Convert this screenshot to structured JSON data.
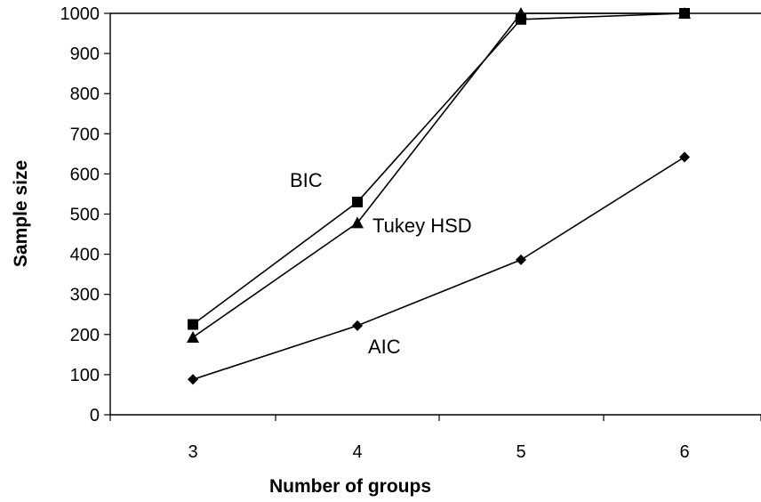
{
  "chart_data": {
    "type": "line",
    "categories": [
      "3",
      "4",
      "5",
      "6"
    ],
    "x": [
      3,
      4,
      5,
      6
    ],
    "xlabel": "Number of groups",
    "ylabel": "Sample size",
    "ylim": [
      0,
      1000
    ],
    "yticks": [
      0,
      100,
      200,
      300,
      400,
      500,
      600,
      700,
      800,
      900,
      1000
    ],
    "grid": false,
    "legend": "none",
    "series": [
      {
        "name": "BIC",
        "marker": "square",
        "values": [
          225,
          530,
          985,
          1000
        ]
      },
      {
        "name": "Tukey HSD",
        "marker": "triangle",
        "values": [
          193,
          478,
          1000,
          1000
        ]
      },
      {
        "name": "AIC",
        "marker": "diamond",
        "values": [
          88,
          222,
          386,
          642
        ]
      }
    ],
    "annotations": [
      {
        "text": "BIC",
        "series": "BIC"
      },
      {
        "text": "Tukey HSD",
        "series": "Tukey HSD"
      },
      {
        "text": "AIC",
        "series": "AIC"
      }
    ],
    "colors": {
      "line": "#000000",
      "marker": "#000000",
      "background": "#ffffff"
    }
  }
}
